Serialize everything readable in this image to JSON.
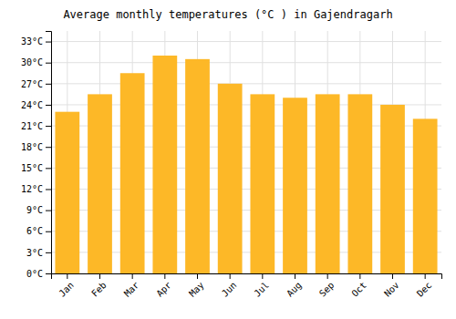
{
  "chart_data": {
    "type": "bar",
    "title": "Average monthly temperatures (°C ) in Gajendragarh",
    "categories": [
      "Jan",
      "Feb",
      "Mar",
      "Apr",
      "May",
      "Jun",
      "Jul",
      "Aug",
      "Sep",
      "Oct",
      "Nov",
      "Dec"
    ],
    "values": [
      23.0,
      25.5,
      28.5,
      31.0,
      30.5,
      27.0,
      25.5,
      25.0,
      25.5,
      25.5,
      24.0,
      22.0
    ],
    "color": "#FDB827",
    "ylim": [
      0,
      34.5
    ],
    "yticks": [
      {
        "value": 0,
        "label": "0°C"
      },
      {
        "value": 3,
        "label": "3°C"
      },
      {
        "value": 6,
        "label": "6°C"
      },
      {
        "value": 9,
        "label": "9°C"
      },
      {
        "value": 12,
        "label": "12°C"
      },
      {
        "value": 15,
        "label": "15°C"
      },
      {
        "value": 18,
        "label": "18°C"
      },
      {
        "value": 21,
        "label": "21°C"
      },
      {
        "value": 24,
        "label": "24°C"
      },
      {
        "value": 27,
        "label": "27°C"
      },
      {
        "value": 30,
        "label": "30°C"
      },
      {
        "value": 33,
        "label": "33°C"
      }
    ],
    "grid": true
  }
}
